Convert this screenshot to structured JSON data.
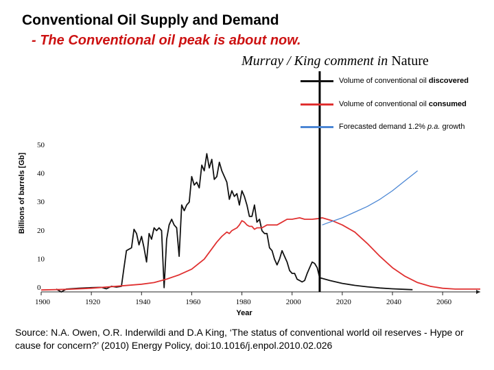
{
  "header": {
    "title": "Conventional Oil Supply and Demand",
    "subtitle": "- The Conventional oil peak is about now.",
    "credit_authors": "Murray / King comment in",
    "credit_journal": "Nature"
  },
  "legend": {
    "discovered": {
      "prefix": "Volume of conventional oil",
      "bold": "discovered",
      "color": "#111111"
    },
    "consumed": {
      "prefix": "Volume of conventional oil",
      "bold": "consumed",
      "color": "#e03030"
    },
    "forecast": {
      "prefix": "Forecasted demand 1.2%",
      "italic": "p.a.",
      "suffix": "growth",
      "color": "#4a86d4"
    }
  },
  "source": {
    "text": "Source: N.A. Owen, O.R. Inderwildi and D.A King, ‘The status of conventional world oil reserves - Hype or cause for concern?’ (2010) Energy Policy,  doi:10.1016/j.enpol.2010.02.026"
  },
  "chart_data": {
    "type": "line",
    "title": "Conventional Oil Supply and Demand",
    "xlabel": "Year",
    "ylabel": "Billions of barrels [Gb]",
    "xlim": [
      1900,
      2075
    ],
    "ylim": [
      0,
      50
    ],
    "x_ticks": [
      1900,
      1920,
      1940,
      1960,
      1980,
      2000,
      2020,
      2040,
      2060
    ],
    "x_tick_labels": [
      "1900",
      "1920",
      "1940",
      "1960",
      "1980",
      "2000",
      "2020",
      "2040",
      "2060"
    ],
    "y_ticks": [
      0,
      10,
      20,
      30,
      40,
      50
    ],
    "y_tick_labels": [
      "0",
      "10",
      "20",
      "30",
      "40",
      "50"
    ],
    "vertical_marker_year": 2011,
    "series": [
      {
        "name": "Volume of conventional oil discovered",
        "color": "#111111",
        "x": [
          1906,
          1908,
          1910,
          1915,
          1920,
          1924,
          1926,
          1928,
          1930,
          1932,
          1933,
          1934,
          1936,
          1937,
          1938,
          1939,
          1940,
          1941,
          1942,
          1943,
          1944,
          1945,
          1946,
          1947,
          1948,
          1949,
          1950,
          1951,
          1952,
          1953,
          1954,
          1955,
          1956,
          1957,
          1958,
          1959,
          1960,
          1961,
          1962,
          1963,
          1964,
          1965,
          1966,
          1967,
          1968,
          1969,
          1970,
          1971,
          1972,
          1973,
          1974,
          1975,
          1976,
          1977,
          1978,
          1979,
          1980,
          1981,
          1982,
          1983,
          1984,
          1985,
          1986,
          1987,
          1988,
          1989,
          1990,
          1991,
          1992,
          1993,
          1994,
          1995,
          1996,
          1997,
          1998,
          1999,
          2000,
          2001,
          2002,
          2003,
          2004,
          2005,
          2006,
          2007,
          2008,
          2009,
          2010,
          2011,
          2015,
          2020,
          2025,
          2030,
          2035,
          2040,
          2045,
          2048
        ],
        "values": [
          0.5,
          -0.5,
          0.5,
          0.8,
          1.0,
          1.1,
          0.6,
          1.5,
          1.2,
          1.5,
          8,
          14,
          15,
          21.5,
          20,
          16,
          19,
          15,
          10,
          20,
          18,
          22,
          21,
          22,
          21,
          1,
          18,
          23,
          25,
          23,
          22,
          12,
          30,
          28,
          30,
          31,
          40,
          37,
          38,
          36,
          44,
          42,
          48,
          43,
          46,
          39,
          40,
          45,
          42,
          40,
          38,
          32,
          35,
          33,
          34,
          30,
          35,
          33,
          30,
          26,
          26,
          30,
          24,
          25,
          21,
          20,
          20,
          15,
          14,
          11,
          9,
          11,
          14,
          12,
          10,
          7,
          6,
          6,
          4,
          3.5,
          3,
          3.5,
          6,
          8,
          10,
          9.5,
          8,
          4.5,
          3.5,
          2.5,
          1.8,
          1.3,
          0.9,
          0.6,
          0.4,
          0.3
        ]
      },
      {
        "name": "Volume of conventional oil consumed",
        "color": "#e03030",
        "x": [
          1900,
          1910,
          1920,
          1930,
          1940,
          1945,
          1950,
          1955,
          1960,
          1965,
          1970,
          1972,
          1974,
          1975,
          1976,
          1978,
          1979,
          1980,
          1981,
          1982,
          1983,
          1984,
          1985,
          1986,
          1988,
          1990,
          1992,
          1994,
          1996,
          1998,
          2000,
          2003,
          2005,
          2008,
          2010,
          2012,
          2014,
          2016,
          2020,
          2025,
          2030,
          2035,
          2040,
          2045,
          2050,
          2055,
          2060,
          2065,
          2070,
          2075
        ],
        "values": [
          0.2,
          0.4,
          0.8,
          1.5,
          2.2,
          2.8,
          4,
          5.5,
          7.5,
          11,
          17,
          19,
          20.5,
          20,
          21,
          22,
          23,
          24.5,
          24,
          23,
          22.5,
          22.5,
          21.5,
          22,
          22,
          23,
          23,
          23,
          24,
          25,
          25,
          25.5,
          25,
          25,
          25.2,
          25.5,
          25,
          24.5,
          23,
          20.5,
          16.5,
          12,
          8,
          5,
          2.8,
          1.5,
          0.8,
          0.5,
          0.5,
          0.5
        ]
      },
      {
        "name": "Forecasted demand 1.2% p.a. growth",
        "color": "#4a86d4",
        "x": [
          2012,
          2015,
          2020,
          2025,
          2030,
          2035,
          2040,
          2045,
          2050
        ],
        "values": [
          23,
          24,
          25.5,
          27.5,
          29.5,
          32,
          35,
          38.5,
          42
        ]
      }
    ]
  }
}
